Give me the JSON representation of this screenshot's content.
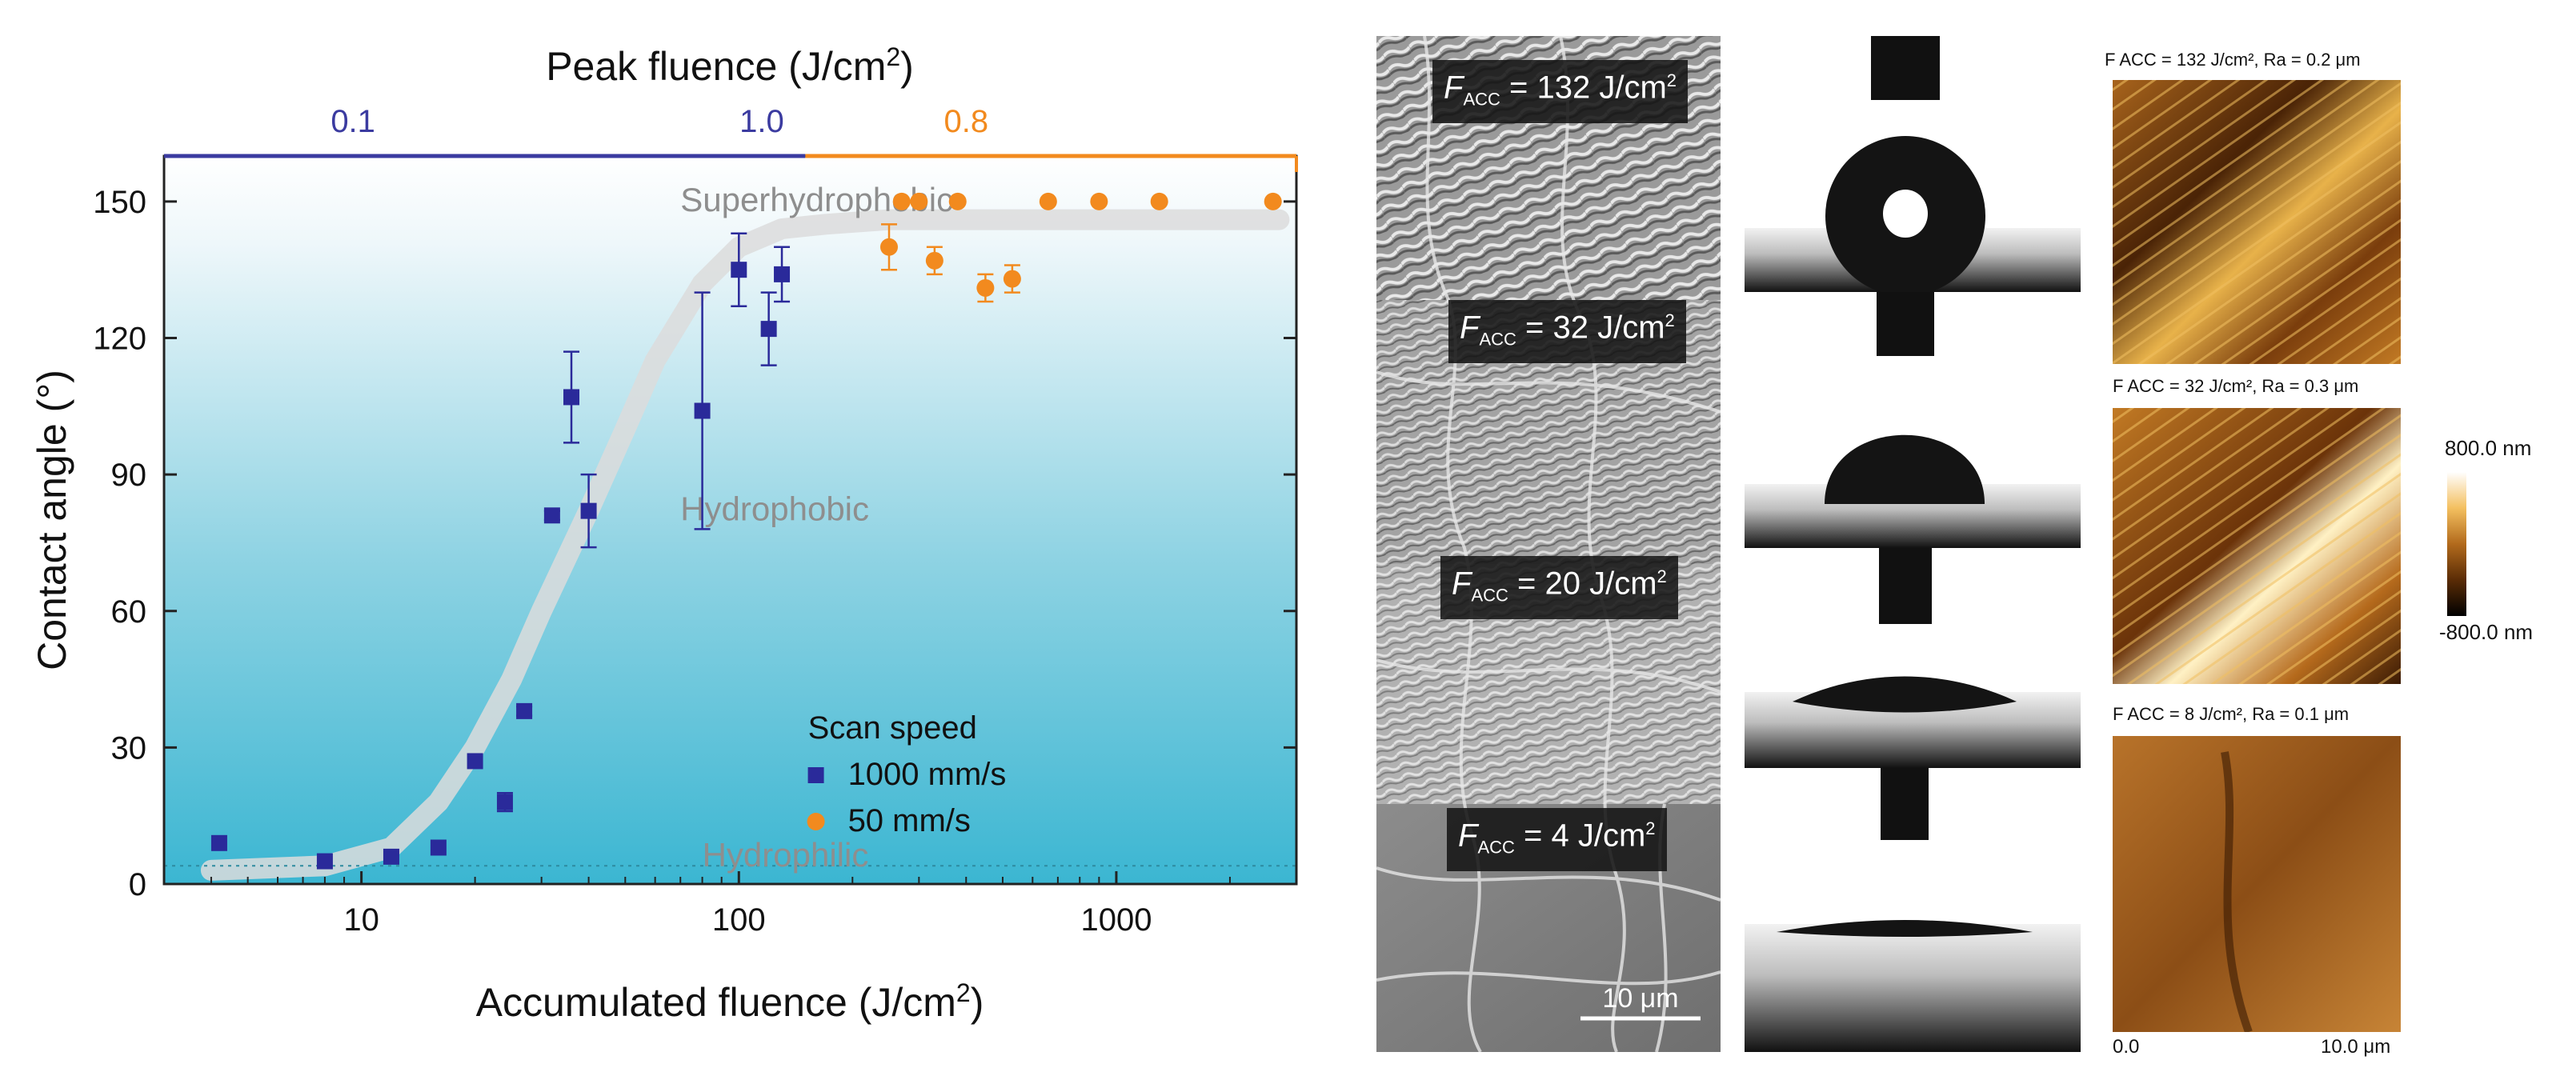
{
  "chart_data": {
    "type": "scatter",
    "xscale": "log",
    "xlim": [
      3,
      3000
    ],
    "ylim": [
      0,
      160
    ],
    "xlabel": "Accumulated fluence (J/cm",
    "xlabel_sup": "2",
    "xlabel_end": ")",
    "ylabel": "Contact angle (°)",
    "top_axis_title": "Peak fluence (J/cm",
    "top_axis_title_sup": "2",
    "top_axis_title_end": ")",
    "top_ticks": [
      {
        "label": "0.1",
        "color": "#3b3ba0"
      },
      {
        "label": "1.0",
        "color": "#3b3ba0"
      },
      {
        "label": "0.8",
        "color": "#f28a1e"
      }
    ],
    "x_ticks": [
      {
        "value": 10,
        "label": "10"
      },
      {
        "value": 100,
        "label": "100"
      },
      {
        "value": 1000,
        "label": "1000"
      }
    ],
    "y_ticks": [
      {
        "value": 0,
        "label": "0"
      },
      {
        "value": 30,
        "label": "30"
      },
      {
        "value": 60,
        "label": "60"
      },
      {
        "value": 90,
        "label": "90"
      },
      {
        "value": 120,
        "label": "120"
      },
      {
        "value": 150,
        "label": "150"
      }
    ],
    "regions": [
      {
        "label": "Superhydrophobic",
        "x": 70,
        "y": 150
      },
      {
        "label": "Hydrophobic",
        "x": 70,
        "y": 82
      },
      {
        "label": "Hydrophilic",
        "x": 80,
        "y": 6
      }
    ],
    "legend_title": "Scan speed",
    "legend_position": "lower-right",
    "trend_curve": {
      "x": [
        4,
        8,
        12,
        16,
        20,
        25,
        30,
        40,
        50,
        60,
        80,
        100,
        130,
        170,
        250,
        500,
        1000,
        2700
      ],
      "y": [
        3,
        4,
        8,
        18,
        30,
        45,
        60,
        82,
        100,
        115,
        132,
        140,
        144,
        145,
        146,
        146,
        146,
        146
      ]
    },
    "series": [
      {
        "name": "1000 mm/s",
        "color": "#2a2a9a",
        "marker": "square",
        "x": [
          4.2,
          8,
          12,
          16,
          20,
          24,
          27,
          32,
          36,
          40,
          80,
          100,
          120,
          130
        ],
        "y": [
          9,
          5,
          6,
          8,
          27,
          18,
          38,
          81,
          107,
          82,
          104,
          135,
          122,
          134
        ],
        "err": [
          0,
          0,
          0,
          0,
          0,
          2,
          1,
          1,
          10,
          8,
          26,
          8,
          8,
          6
        ]
      },
      {
        "name": "50 mm/s",
        "color": "#f28a1e",
        "marker": "circle",
        "x": [
          250,
          270,
          300,
          330,
          380,
          450,
          530,
          660,
          900,
          1300,
          2600
        ],
        "y": [
          140,
          150,
          150,
          137,
          150,
          131,
          133,
          150,
          150,
          150,
          150
        ],
        "err": [
          5,
          0,
          0,
          3,
          0,
          3,
          3,
          0,
          0,
          0,
          0
        ]
      }
    ]
  },
  "images": {
    "sem_labels": [
      {
        "prefix": "F",
        "sub": "ACC",
        "text": " = 132 J/cm",
        "sup": "2"
      },
      {
        "prefix": "F",
        "sub": "ACC",
        "text": " = 32 J/cm",
        "sup": "2"
      },
      {
        "prefix": "F",
        "sub": "ACC",
        "text": " = 20 J/cm",
        "sup": "2"
      },
      {
        "prefix": "F",
        "sub": "ACC",
        "text": " = 4 J/cm",
        "sup": "2"
      }
    ],
    "scale_bar_label": "10 μm",
    "afm_captions": [
      "F ACC = 132 J/cm², Ra = 0.2 μm",
      "F ACC = 32 J/cm², Ra = 0.3 μm",
      "F ACC = 8 J/cm², Ra = 0.1 μm"
    ],
    "colorbar_max": "800.0 nm",
    "colorbar_min": "-800.0 nm",
    "afm_axis_start": "0.0",
    "afm_axis_end": "10.0 μm"
  }
}
